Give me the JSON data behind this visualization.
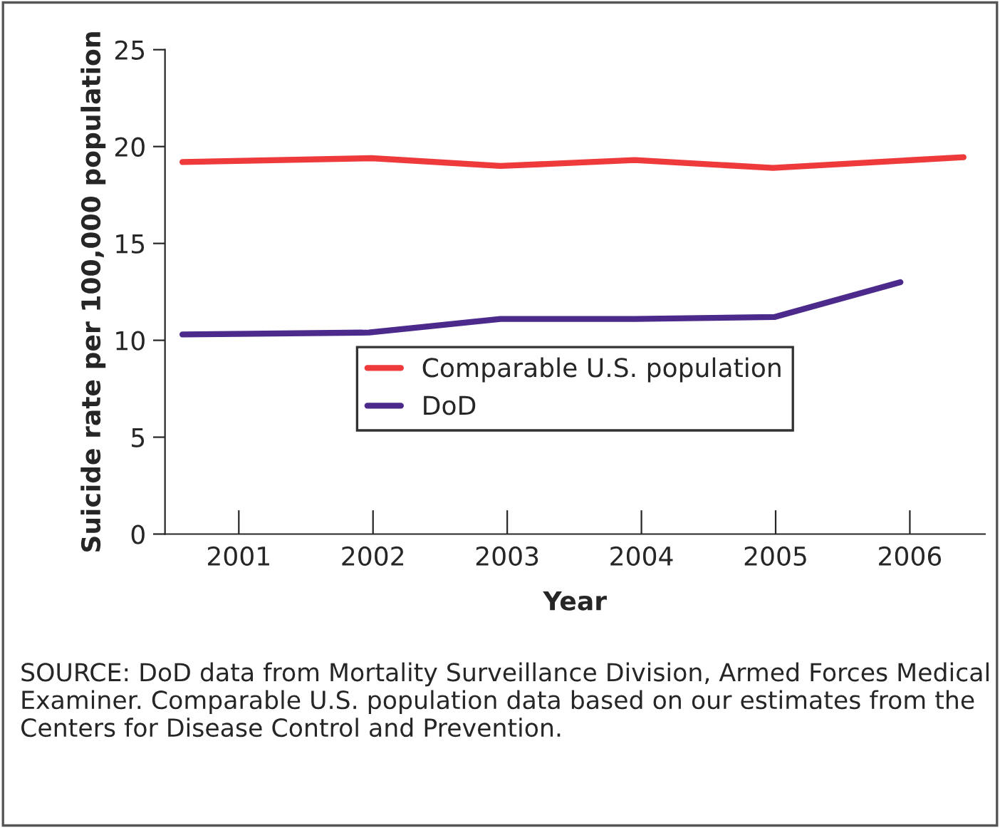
{
  "chart_data": {
    "type": "line",
    "xlabel": "Year",
    "ylabel": "Suicide rate per 100,000 population",
    "xlim": [
      2000.45,
      2006.56
    ],
    "xticks": [
      2001,
      2002,
      2003,
      2004,
      2005,
      2006
    ],
    "ylim": [
      0,
      25
    ],
    "yticks": [
      0,
      5,
      10,
      15,
      20,
      25
    ],
    "series": [
      {
        "name": "Comparable U.S. population",
        "color": "#ee3a3a",
        "x": [
          2000.58,
          2001.99,
          2002.95,
          2003.95,
          2004.98,
          2006.4
        ],
        "values": [
          19.2,
          19.4,
          19.0,
          19.3,
          18.9,
          19.45
        ]
      },
      {
        "name": "DoD",
        "color": "#4b2a8c",
        "x": [
          2000.58,
          2001.97,
          2002.95,
          2003.95,
          2004.99,
          2005.93
        ],
        "values": [
          10.3,
          10.4,
          11.1,
          11.1,
          11.2,
          13.0
        ]
      }
    ],
    "legend": "center",
    "grid": false,
    "marker": "none",
    "line_style": "solid",
    "annotations": [
      "SOURCE: DoD data from Mortality Surveillance Division, Armed Forces Medical Examiner. Comparable U.S. population data based on our estimates from the Centers for Disease Control and Prevention."
    ]
  }
}
